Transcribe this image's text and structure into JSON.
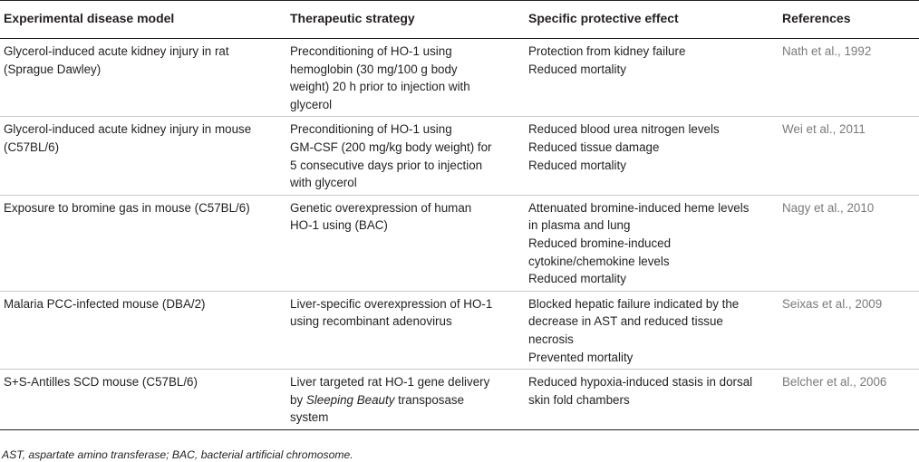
{
  "table": {
    "headers": [
      "Experimental disease model",
      "Therapeutic strategy",
      "Specific protective effect",
      "References"
    ],
    "rows": [
      {
        "model": [
          "Glycerol-induced acute kidney injury in rat",
          "(Sprague Dawley)"
        ],
        "strategy": [
          "Preconditioning of HO-1 using",
          "hemoglobin (30 mg/100 g body",
          "weight) 20 h prior to injection with",
          "glycerol"
        ],
        "effect": [
          "Protection from kidney failure",
          "Reduced mortality"
        ],
        "reference": "Nath et al., 1992"
      },
      {
        "model": [
          "Glycerol-induced acute kidney injury in mouse",
          "(C57BL/6)"
        ],
        "strategy": [
          "Preconditioning of HO-1 using",
          "GM-CSF (200 mg/kg body weight) for",
          "5 consecutive days prior to injection",
          "with glycerol"
        ],
        "effect": [
          "Reduced blood urea nitrogen levels",
          "Reduced tissue damage",
          "Reduced mortality"
        ],
        "reference": "Wei et al., 2011"
      },
      {
        "model": [
          "Exposure to bromine gas in mouse (C57BL/6)"
        ],
        "strategy": [
          "Genetic overexpression of human",
          "HO-1 using (BAC)"
        ],
        "effect": [
          "Attenuated bromine-induced heme levels",
          "in plasma and lung",
          "Reduced bromine-induced",
          "cytokine/chemokine levels",
          "Reduced mortality"
        ],
        "reference": "Nagy et al., 2010"
      },
      {
        "model": [
          "Malaria PCC-infected mouse (DBA/2)"
        ],
        "strategy": [
          "Liver-specific overexpression of HO-1",
          "using recombinant adenovirus"
        ],
        "effect": [
          "Blocked hepatic failure indicated by the",
          "decrease in AST and reduced tissue",
          "necrosis",
          "Prevented mortality"
        ],
        "reference": "Seixas et al., 2009"
      },
      {
        "model": [
          "S+S-Antilles SCD mouse (C57BL/6)"
        ],
        "strategy_line1": "Liver targeted rat HO-1 gene delivery",
        "strategy_line2_prefix": "by ",
        "strategy_line2_italic": "Sleeping Beauty",
        "strategy_line2_suffix": " transposase",
        "strategy_line3": "system",
        "effect": [
          "Reduced hypoxia-induced stasis in dorsal",
          "skin fold chambers"
        ],
        "reference": "Belcher et al., 2006"
      }
    ]
  },
  "footnote": "AST, aspartate amino transferase; BAC, bacterial artificial chromosome."
}
